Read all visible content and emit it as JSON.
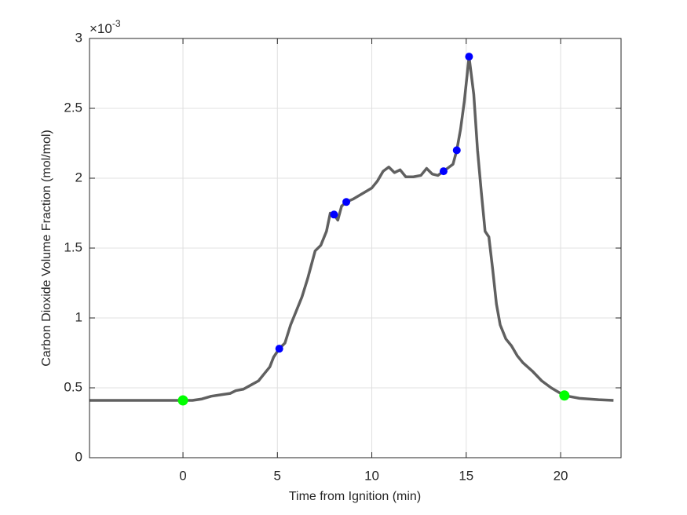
{
  "chart_data": {
    "type": "line",
    "xlabel": "Time from Ignition (min)",
    "ylabel": "Carbon Dioxide Volume Fraction (mol/mol)",
    "y_multiplier": {
      "base": "×10",
      "exponent": "-3"
    },
    "xlim": [
      -4.95,
      23.2
    ],
    "xticks": [
      0,
      5,
      10,
      15,
      20
    ],
    "ylim": [
      0,
      3
    ],
    "yticks": [
      0,
      0.5,
      1,
      1.5,
      2,
      2.5,
      3
    ],
    "grid": true,
    "series": [
      {
        "style": "line",
        "color": "#606060",
        "x": [
          -4.95,
          -3,
          -1,
          0,
          0.5,
          1,
          1.5,
          2,
          2.5,
          2.8,
          3.2,
          3.6,
          4,
          4.3,
          4.6,
          4.8,
          5.1,
          5.4,
          5.7,
          6,
          6.3,
          6.6,
          6.8,
          7,
          7.3,
          7.6,
          7.8,
          8.0,
          8.2,
          8.4,
          8.65,
          9,
          9.5,
          10,
          10.3,
          10.6,
          10.9,
          11.2,
          11.5,
          11.8,
          12.2,
          12.6,
          12.9,
          13.2,
          13.5,
          13.8,
          14.1,
          14.3,
          14.5,
          14.7,
          14.9,
          15.15,
          15.4,
          15.6,
          15.8,
          16,
          16.2,
          16.4,
          16.6,
          16.8,
          17.1,
          17.4,
          17.7,
          18,
          18.5,
          19,
          19.5,
          20,
          20.2,
          21,
          22,
          22.8
        ],
        "values": [
          0.41,
          0.41,
          0.41,
          0.41,
          0.41,
          0.42,
          0.44,
          0.45,
          0.46,
          0.48,
          0.49,
          0.52,
          0.55,
          0.6,
          0.65,
          0.72,
          0.78,
          0.82,
          0.95,
          1.05,
          1.15,
          1.28,
          1.38,
          1.48,
          1.52,
          1.62,
          1.75,
          1.74,
          1.7,
          1.8,
          1.83,
          1.85,
          1.89,
          1.93,
          1.98,
          2.05,
          2.08,
          2.04,
          2.06,
          2.01,
          2.01,
          2.02,
          2.07,
          2.03,
          2.02,
          2.05,
          2.08,
          2.1,
          2.2,
          2.35,
          2.55,
          2.87,
          2.6,
          2.2,
          1.9,
          1.62,
          1.58,
          1.35,
          1.1,
          0.95,
          0.85,
          0.8,
          0.73,
          0.68,
          0.62,
          0.55,
          0.5,
          0.46,
          0.445,
          0.425,
          0.415,
          0.41
        ]
      },
      {
        "style": "marker",
        "color": "#0000ff",
        "size": 5,
        "x": [
          5.1,
          8.0,
          8.65,
          13.8,
          14.5,
          15.15
        ],
        "values": [
          0.78,
          1.74,
          1.83,
          2.05,
          2.2,
          2.87
        ]
      },
      {
        "style": "marker",
        "color": "#00ff00",
        "size": 6.5,
        "x": [
          0,
          20.2
        ],
        "values": [
          0.41,
          0.445
        ]
      }
    ]
  }
}
